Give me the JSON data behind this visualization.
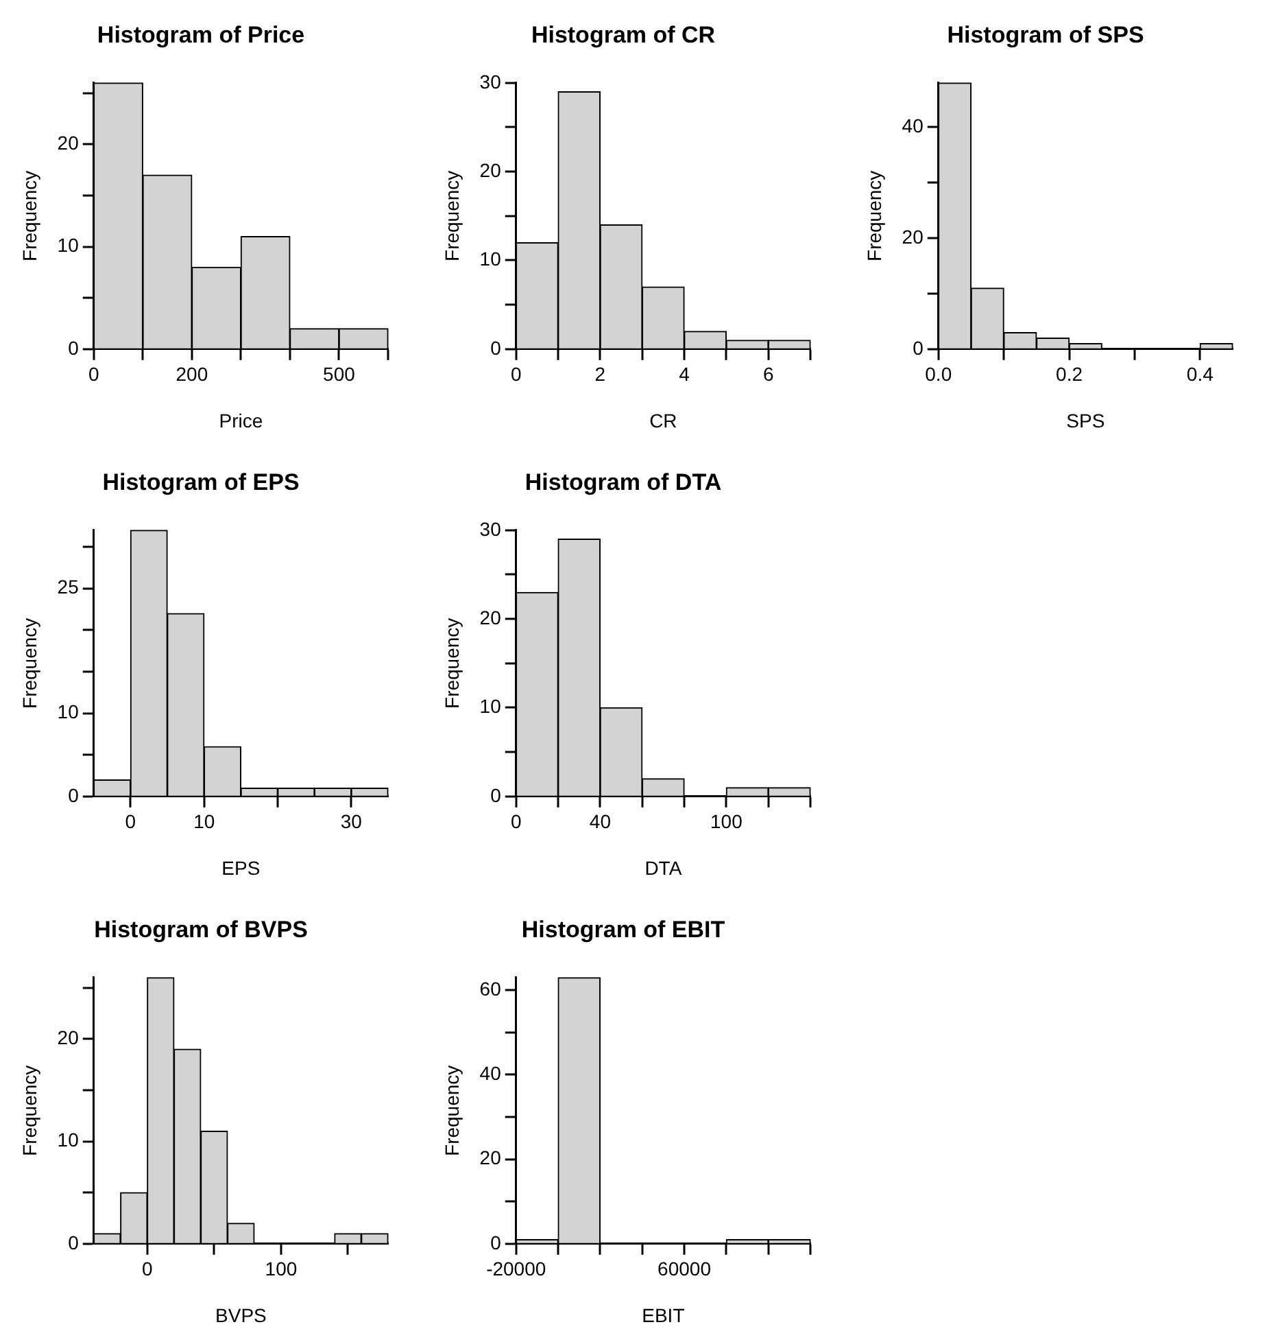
{
  "chart_data": [
    {
      "type": "histogram",
      "title": "Histogram of Price",
      "xlabel": "Price",
      "ylabel": "Frequency",
      "color": "#d3d3d3",
      "bins": [
        0,
        100,
        200,
        300,
        400,
        500,
        600
      ],
      "values": [
        26,
        17,
        8,
        11,
        2,
        2
      ],
      "xlim": [
        0,
        600
      ],
      "ylim": [
        0,
        26
      ],
      "xticks": [
        0,
        {
          "value": 100,
          "label": null
        },
        200,
        {
          "value": 300,
          "label": null
        },
        {
          "value": 400,
          "label": null
        },
        500,
        {
          "value": 600,
          "label": null
        }
      ],
      "yticks": [
        0,
        {
          "value": 5,
          "label": null
        },
        10,
        {
          "value": 15,
          "label": null
        },
        20,
        {
          "value": 25,
          "label": null
        }
      ]
    },
    {
      "type": "histogram",
      "title": "Histogram of CR",
      "xlabel": "CR",
      "ylabel": "Frequency",
      "color": "#d3d3d3",
      "bins": [
        0,
        1,
        2,
        3,
        4,
        5,
        6,
        7
      ],
      "values": [
        12,
        29,
        14,
        7,
        2,
        1,
        1
      ],
      "xlim": [
        0,
        7
      ],
      "ylim": [
        0,
        30
      ],
      "xticks": [
        0,
        {
          "value": 1,
          "label": null
        },
        2,
        {
          "value": 3,
          "label": null
        },
        4,
        {
          "value": 5,
          "label": null
        },
        6,
        {
          "value": 7,
          "label": null
        }
      ],
      "yticks": [
        0,
        {
          "value": 5,
          "label": null
        },
        10,
        {
          "value": 15,
          "label": null
        },
        20,
        {
          "value": 25,
          "label": null
        },
        30
      ]
    },
    {
      "type": "histogram",
      "title": "Histogram of SPS",
      "xlabel": "SPS",
      "ylabel": "Frequency",
      "color": "#d3d3d3",
      "bins": [
        0,
        0.05,
        0.1,
        0.15,
        0.2,
        0.25,
        0.3,
        0.35,
        0.4,
        0.45
      ],
      "values": [
        48,
        11,
        3,
        2,
        1,
        0,
        0,
        0,
        1
      ],
      "xlim": [
        0,
        0.45
      ],
      "ylim": [
        0,
        48
      ],
      "xticks": [
        {
          "value": 0,
          "label": "0.0"
        },
        {
          "value": 0.1,
          "label": null
        },
        0.2,
        {
          "value": 0.3,
          "label": null
        },
        0.4
      ],
      "yticks": [
        0,
        {
          "value": 10,
          "label": null
        },
        20,
        {
          "value": 30,
          "label": null
        },
        40
      ]
    },
    {
      "type": "histogram",
      "title": "Histogram of EPS",
      "xlabel": "EPS",
      "ylabel": "Frequency",
      "color": "#d3d3d3",
      "bins": [
        -5,
        0,
        5,
        10,
        15,
        20,
        25,
        30,
        35
      ],
      "values": [
        2,
        32,
        22,
        6,
        1,
        1,
        1,
        1
      ],
      "xlim": [
        -5,
        35
      ],
      "ylim": [
        0,
        32
      ],
      "xticks": [
        0,
        10,
        {
          "value": 20,
          "label": null
        },
        30
      ],
      "yticks": [
        0,
        {
          "value": 5,
          "label": null
        },
        10,
        {
          "value": 15,
          "label": null
        },
        {
          "value": 20,
          "label": null
        },
        25,
        {
          "value": 30,
          "label": null
        }
      ]
    },
    {
      "type": "histogram",
      "title": "Histogram of DTA",
      "xlabel": "DTA",
      "ylabel": "Frequency",
      "color": "#d3d3d3",
      "bins": [
        0,
        20,
        40,
        60,
        80,
        100,
        120,
        140
      ],
      "values": [
        23,
        29,
        10,
        2,
        0,
        1,
        1
      ],
      "xlim": [
        0,
        140
      ],
      "ylim": [
        0,
        30
      ],
      "xticks": [
        0,
        {
          "value": 20,
          "label": null
        },
        40,
        {
          "value": 60,
          "label": null
        },
        {
          "value": 80,
          "label": null
        },
        100,
        {
          "value": 120,
          "label": null
        },
        {
          "value": 140,
          "label": null
        }
      ],
      "yticks": [
        0,
        {
          "value": 5,
          "label": null
        },
        10,
        {
          "value": 15,
          "label": null
        },
        20,
        {
          "value": 25,
          "label": null
        },
        30
      ]
    },
    {
      "type": "histogram",
      "title": "Histogram of BVPS",
      "xlabel": "BVPS",
      "ylabel": "Frequency",
      "color": "#d3d3d3",
      "bins": [
        -40,
        -20,
        0,
        20,
        40,
        60,
        80,
        100,
        120,
        140,
        160,
        180
      ],
      "values": [
        1,
        5,
        26,
        19,
        11,
        2,
        0,
        0,
        0,
        1,
        1
      ],
      "xlim": [
        -40,
        180
      ],
      "ylim": [
        0,
        26
      ],
      "xticks": [
        0,
        {
          "value": 50,
          "label": null
        },
        100,
        {
          "value": 150,
          "label": null
        }
      ],
      "yticks": [
        0,
        {
          "value": 5,
          "label": null
        },
        10,
        {
          "value": 15,
          "label": null
        },
        20,
        {
          "value": 25,
          "label": null
        }
      ]
    },
    {
      "type": "histogram",
      "title": "Histogram of EBIT",
      "xlabel": "EBIT",
      "ylabel": "Frequency",
      "color": "#d3d3d3",
      "bins": [
        -20000,
        0,
        20000,
        40000,
        60000,
        80000,
        100000,
        120000
      ],
      "values": [
        1,
        63,
        0,
        0,
        0,
        1,
        1
      ],
      "xlim": [
        -20000,
        120000
      ],
      "ylim": [
        0,
        63
      ],
      "xticks": [
        -20000,
        {
          "value": 0,
          "label": null
        },
        {
          "value": 20000,
          "label": null
        },
        {
          "value": 40000,
          "label": null
        },
        60000,
        {
          "value": 80000,
          "label": null
        },
        {
          "value": 100000,
          "label": null
        },
        {
          "value": 120000,
          "label": null
        }
      ],
      "yticks": [
        0,
        {
          "value": 10,
          "label": null
        },
        20,
        {
          "value": 30,
          "label": null
        },
        40,
        {
          "value": 50,
          "label": null
        },
        60
      ]
    }
  ]
}
